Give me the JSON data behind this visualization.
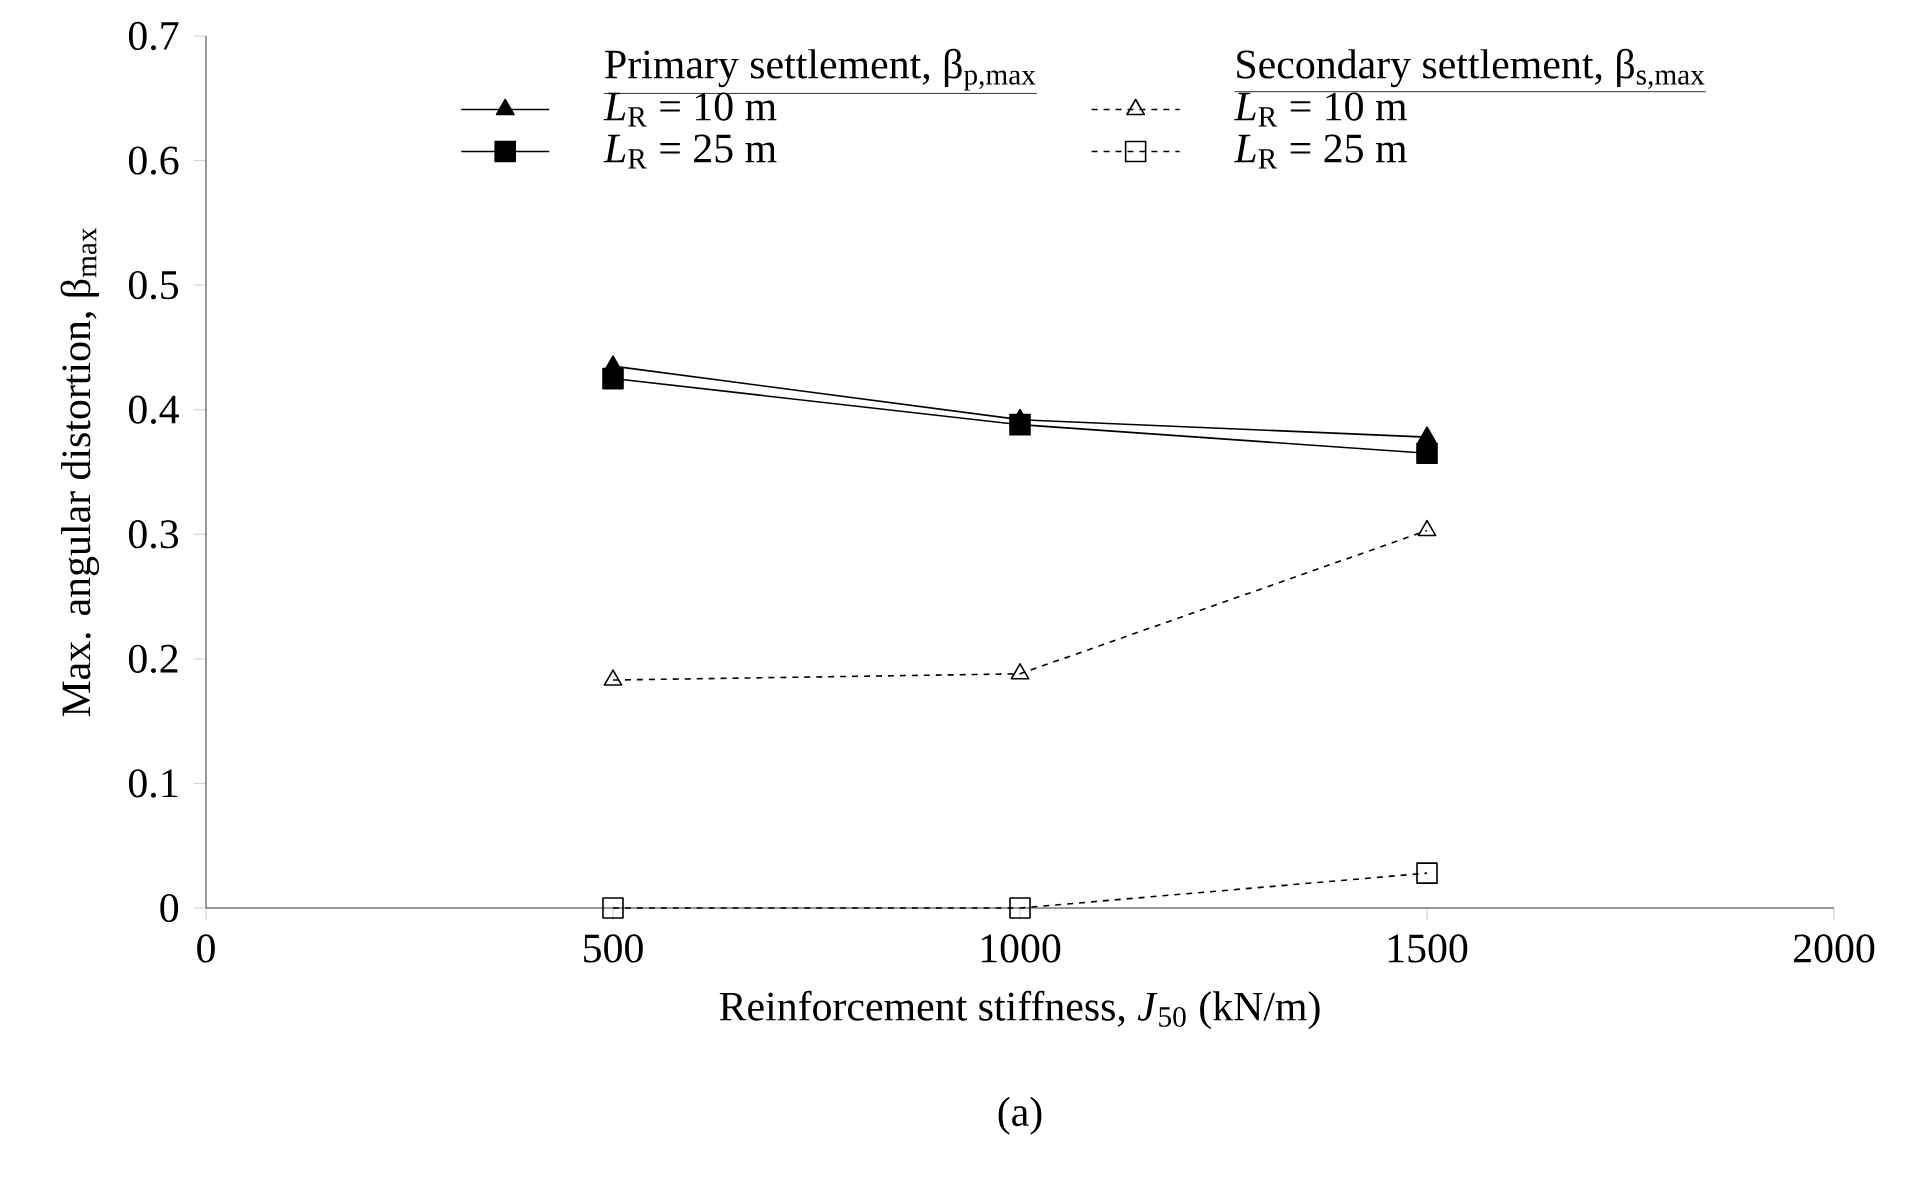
{
  "chart_data": {
    "type": "line",
    "xlabel": "Reinforcement stiffness, *J*$_{50}$ (kN/m)",
    "ylabel": "Max. angular distortion, β$_{max}$",
    "x": [
      500,
      1000,
      1500
    ],
    "series": [
      {
        "name": "*L*$_{R}$ = 10 m",
        "color": "#000000",
        "marker": "triangle",
        "line_style": "solid",
        "values": [
          0.435,
          0.392,
          0.378
        ]
      },
      {
        "name": "*L*$_{R}$ = 25 m",
        "color": "#000000",
        "marker": "square",
        "line_style": "solid",
        "values": [
          0.425,
          0.388,
          0.365
        ]
      },
      {
        "name": "*L*$_{R}$ = 10 m",
        "color": "#000000",
        "marker": "triangle",
        "line_style": "dashed",
        "values": [
          0.183,
          0.188,
          0.303
        ]
      },
      {
        "name": "*L*$_{R}$ = 25 m",
        "color": "#000000",
        "marker": "square",
        "line_style": "dashed",
        "values": [
          0.0,
          0.0,
          0.028
        ]
      }
    ],
    "annotations": [
      "Primary settlement, β$_{p,max}$",
      "Secondary settlement, β$_{s,max}$",
      "(a)"
    ],
    "xlim": [
      0,
      2000
    ],
    "xticks": [
      0,
      500,
      1000,
      1500,
      2000
    ],
    "ylim": [
      0,
      0.7
    ],
    "yticks": [
      0,
      0.1,
      0.2,
      0.3,
      0.4,
      0.5,
      0.6,
      0.7
    ],
    "legend": "top",
    "grid": false
  }
}
